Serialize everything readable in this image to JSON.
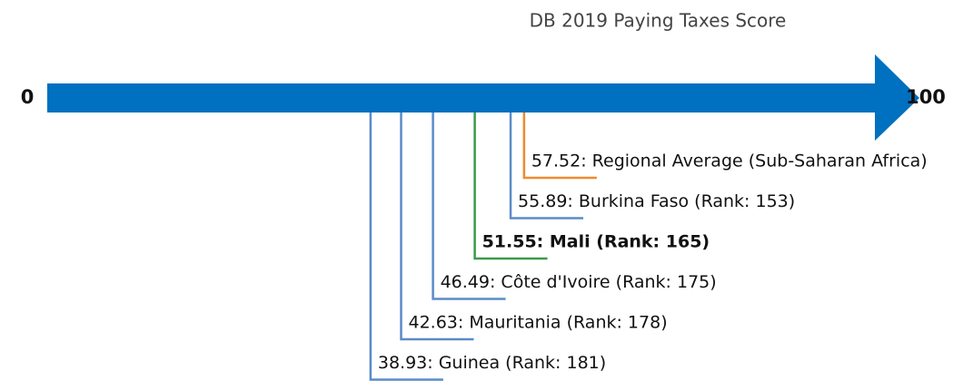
{
  "chart_data": {
    "type": "scale",
    "title": "DB 2019 Paying Taxes Score",
    "xlim": [
      0,
      100
    ],
    "xticks": [
      0,
      100
    ],
    "axis_color": "#0070c0",
    "values": [
      57.52,
      55.89,
      51.55,
      46.49,
      42.63,
      38.93
    ],
    "value_labels": [
      "57.52: Regional Average (Sub-Saharan Africa)",
      "55.89: Burkina Faso (Rank: 153)",
      "51.55: Mali (Rank: 165)",
      "46.49: Côte d'Ivoire (Rank: 175)",
      "42.63: Mauritania (Rank: 178)",
      "38.93: Guinea (Rank: 181)"
    ],
    "colors": [
      "#f08a2c",
      "#5b8bc9",
      "#3a9a4a",
      "#5b8bc9",
      "#5b8bc9",
      "#5b8bc9"
    ],
    "bold": [
      false,
      false,
      true,
      false,
      false,
      false
    ]
  }
}
